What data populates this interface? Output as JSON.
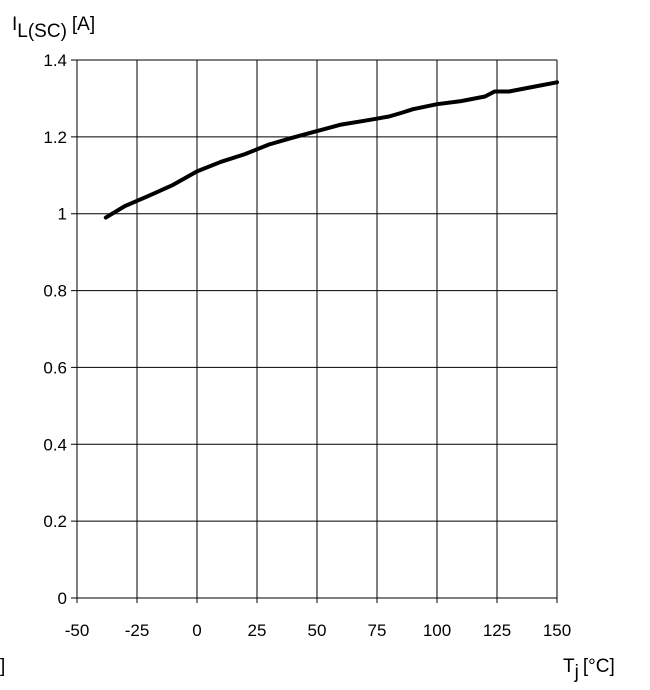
{
  "chart_data": {
    "type": "line",
    "ylabel": {
      "main": "I",
      "sub": "L(SC)",
      "unit": "[A]"
    },
    "xlabel": {
      "main": "T",
      "sub": "j",
      "unit": "[°C]"
    },
    "left_fragment": "]",
    "xlim": [
      -50,
      150
    ],
    "ylim": [
      0,
      1.4
    ],
    "x_ticks": [
      -50,
      -25,
      0,
      25,
      50,
      75,
      100,
      125,
      150
    ],
    "x_tick_labels": [
      "-50",
      "-25",
      "0",
      "25",
      "50",
      "75",
      "100",
      "125",
      "150"
    ],
    "y_ticks": [
      0,
      0.2,
      0.4,
      0.6,
      0.8,
      1,
      1.2,
      1.4
    ],
    "y_tick_labels": [
      "0",
      "0.2",
      "0.4",
      "0.6",
      "0.8",
      "1",
      "1.2",
      "1.4"
    ],
    "grid": true,
    "series": [
      {
        "x": [
          -38,
          -30,
          -20,
          -10,
          0,
          10,
          20,
          30,
          40,
          50,
          60,
          70,
          80,
          85,
          90,
          100,
          110,
          120,
          124,
          126,
          130,
          140,
          150
        ],
        "y": [
          0.99,
          1.02,
          1.047,
          1.075,
          1.11,
          1.135,
          1.155,
          1.18,
          1.198,
          1.215,
          1.232,
          1.242,
          1.253,
          1.262,
          1.272,
          1.285,
          1.293,
          1.305,
          1.318,
          1.318,
          1.318,
          1.33,
          1.342
        ]
      }
    ]
  }
}
